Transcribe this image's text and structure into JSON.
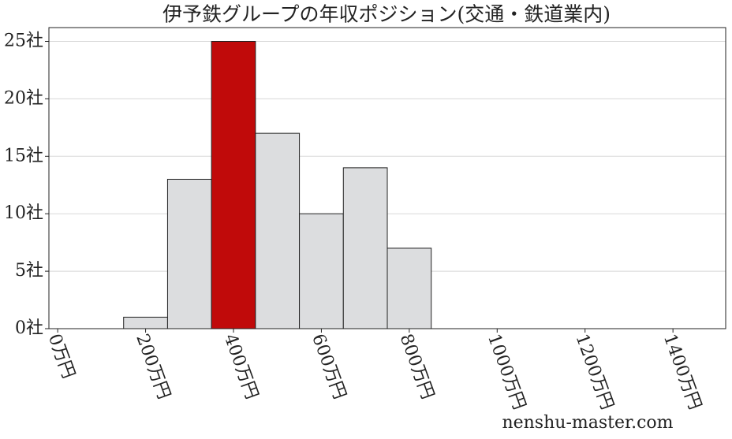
{
  "chart_data": {
    "type": "histogram",
    "title": "伊予鉄グループの年収ポジション(交通・鉄道業内)",
    "bins": [
      150,
      250,
      350,
      450,
      550,
      650,
      750,
      850
    ],
    "values": [
      1,
      13,
      25,
      17,
      10,
      14,
      7
    ],
    "colors": [
      "#dcdddf",
      "#dcdddf",
      "#c00a0a",
      "#dcdddf",
      "#dcdddf",
      "#dcdddf",
      "#dcdddf"
    ],
    "xlim": [
      -20,
      1520
    ],
    "xticks": [
      {
        "value": 0,
        "label": "0万円"
      },
      {
        "value": 200,
        "label": "200万円"
      },
      {
        "value": 400,
        "label": "400万円"
      },
      {
        "value": 600,
        "label": "600万円"
      },
      {
        "value": 800,
        "label": "800万円"
      },
      {
        "value": 1000,
        "label": "1000万円"
      },
      {
        "value": 1200,
        "label": "1200万円"
      },
      {
        "value": 1400,
        "label": "1400万円"
      }
    ],
    "ylim": [
      0,
      26.2
    ],
    "yticks": [
      {
        "value": 0,
        "label": "0社"
      },
      {
        "value": 5,
        "label": "5社"
      },
      {
        "value": 10,
        "label": "10社"
      },
      {
        "value": 15,
        "label": "15社"
      },
      {
        "value": 20,
        "label": "20社"
      },
      {
        "value": 25,
        "label": "25社"
      }
    ],
    "grid": true,
    "watermark": "nenshu-master.com"
  }
}
